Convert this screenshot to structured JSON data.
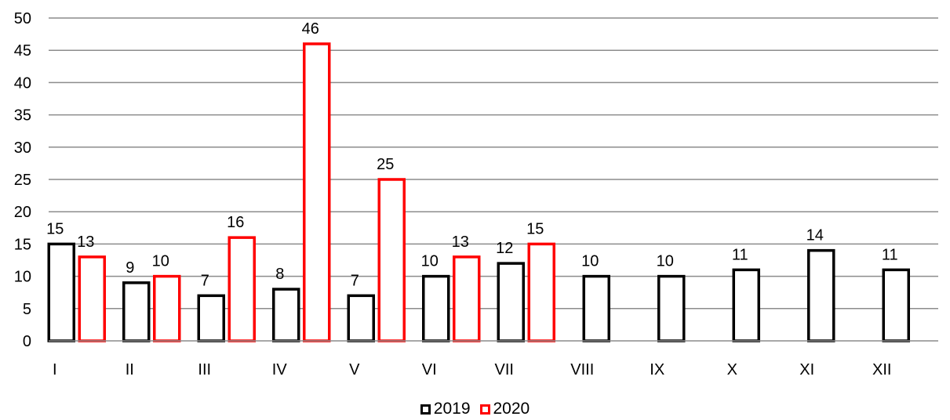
{
  "chart_data": {
    "type": "bar",
    "categories": [
      "I",
      "II",
      "III",
      "IV",
      "V",
      "VI",
      "VII",
      "VIII",
      "IX",
      "X",
      "XI",
      "XII"
    ],
    "series": [
      {
        "name": "2019",
        "color": "#000000",
        "values": [
          15,
          9,
          7,
          8,
          7,
          10,
          12,
          10,
          10,
          11,
          14,
          11
        ]
      },
      {
        "name": "2020",
        "color": "#ff0000",
        "values": [
          13,
          10,
          16,
          46,
          25,
          13,
          15,
          null,
          null,
          null,
          null,
          null
        ]
      }
    ],
    "ylim": [
      0,
      50
    ],
    "yticks": [
      0,
      5,
      10,
      15,
      20,
      25,
      30,
      35,
      40,
      45,
      50
    ],
    "grid": true,
    "legend_position": "bottom-center",
    "bar_fill": "#ffffff",
    "grid_color": "#8c8c8c",
    "title": "",
    "xlabel": "",
    "ylabel": ""
  }
}
